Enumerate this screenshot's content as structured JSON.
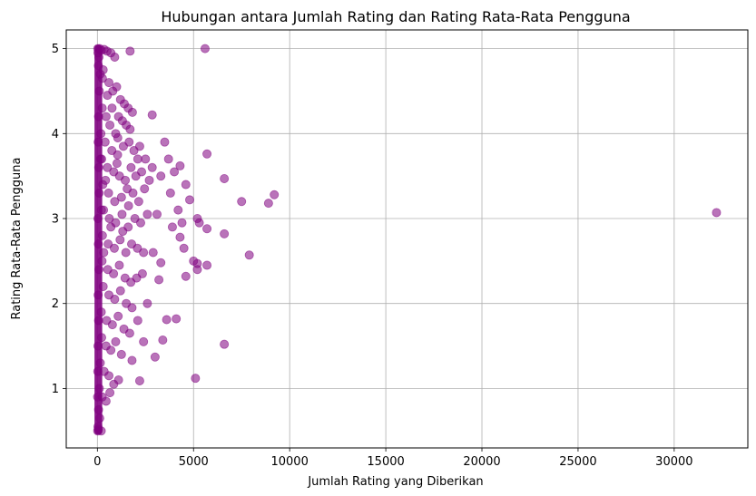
{
  "chart_data": {
    "type": "scatter",
    "title": "Hubungan antara Jumlah Rating dan Rating Rata-Rata Pengguna",
    "xlabel": "Jumlah Rating yang Diberikan",
    "ylabel": "Rating Rata-Rata Pengguna",
    "xlim": [
      -1620,
      33830
    ],
    "ylim": [
      0.3,
      5.22
    ],
    "xticks": [
      0,
      5000,
      10000,
      15000,
      20000,
      25000,
      30000
    ],
    "yticks": [
      1,
      2,
      3,
      4,
      5
    ],
    "grid": true,
    "color": "#800080",
    "alpha": 0.55,
    "series": [
      {
        "dense_cluster": [
          [
            20,
            5.0
          ],
          [
            30,
            4.95
          ],
          [
            80,
            4.9
          ],
          [
            120,
            5.0
          ],
          [
            200,
            4.98
          ],
          [
            350,
            4.99
          ],
          [
            500,
            4.97
          ],
          [
            700,
            4.95
          ],
          [
            900,
            4.9
          ],
          [
            50,
            4.8
          ],
          [
            150,
            4.7
          ],
          [
            300,
            4.75
          ],
          [
            600,
            4.6
          ],
          [
            800,
            4.5
          ],
          [
            1000,
            4.55
          ],
          [
            1200,
            4.4
          ],
          [
            1400,
            4.35
          ],
          [
            100,
            4.5
          ],
          [
            250,
            4.3
          ],
          [
            450,
            4.2
          ],
          [
            650,
            4.1
          ],
          [
            950,
            4.0
          ],
          [
            1100,
            4.2
          ],
          [
            1300,
            4.15
          ],
          [
            1500,
            4.1
          ],
          [
            1700,
            4.05
          ],
          [
            60,
            4.2
          ],
          [
            180,
            4.0
          ],
          [
            400,
            3.9
          ],
          [
            750,
            3.8
          ],
          [
            1050,
            3.75
          ],
          [
            1350,
            3.85
          ],
          [
            1650,
            3.9
          ],
          [
            1900,
            3.8
          ],
          [
            2100,
            3.7
          ],
          [
            40,
            3.9
          ],
          [
            220,
            3.7
          ],
          [
            520,
            3.6
          ],
          [
            850,
            3.55
          ],
          [
            1150,
            3.5
          ],
          [
            1450,
            3.45
          ],
          [
            1750,
            3.6
          ],
          [
            2000,
            3.5
          ],
          [
            2300,
            3.55
          ],
          [
            70,
            3.6
          ],
          [
            280,
            3.4
          ],
          [
            580,
            3.3
          ],
          [
            900,
            3.2
          ],
          [
            1250,
            3.25
          ],
          [
            1550,
            3.35
          ],
          [
            1850,
            3.3
          ],
          [
            2150,
            3.2
          ],
          [
            2450,
            3.35
          ],
          [
            90,
            3.3
          ],
          [
            320,
            3.1
          ],
          [
            620,
            3.0
          ],
          [
            950,
            2.95
          ],
          [
            1280,
            3.05
          ],
          [
            1600,
            2.9
          ],
          [
            1950,
            3.0
          ],
          [
            2250,
            2.95
          ],
          [
            2600,
            3.05
          ],
          [
            30,
            3.0
          ],
          [
            260,
            2.8
          ],
          [
            560,
            2.7
          ],
          [
            880,
            2.65
          ],
          [
            1180,
            2.75
          ],
          [
            1480,
            2.6
          ],
          [
            1780,
            2.7
          ],
          [
            2080,
            2.65
          ],
          [
            2400,
            2.6
          ],
          [
            50,
            2.7
          ],
          [
            240,
            2.5
          ],
          [
            540,
            2.4
          ],
          [
            840,
            2.35
          ],
          [
            1140,
            2.45
          ],
          [
            1440,
            2.3
          ],
          [
            1740,
            2.25
          ],
          [
            2040,
            2.3
          ],
          [
            2340,
            2.35
          ],
          [
            80,
            2.4
          ],
          [
            300,
            2.2
          ],
          [
            600,
            2.1
          ],
          [
            900,
            2.05
          ],
          [
            1200,
            2.15
          ],
          [
            1500,
            2.0
          ],
          [
            1800,
            1.95
          ],
          [
            40,
            2.1
          ],
          [
            200,
            1.9
          ],
          [
            480,
            1.8
          ],
          [
            780,
            1.75
          ],
          [
            1080,
            1.85
          ],
          [
            1380,
            1.7
          ],
          [
            1680,
            1.65
          ],
          [
            60,
            1.8
          ],
          [
            220,
            1.6
          ],
          [
            450,
            1.5
          ],
          [
            700,
            1.45
          ],
          [
            950,
            1.55
          ],
          [
            1250,
            1.4
          ],
          [
            30,
            1.5
          ],
          [
            150,
            1.3
          ],
          [
            350,
            1.2
          ],
          [
            600,
            1.15
          ],
          [
            850,
            1.05
          ],
          [
            1100,
            1.1
          ],
          [
            20,
            1.2
          ],
          [
            100,
            1.0
          ],
          [
            250,
            0.9
          ],
          [
            450,
            0.85
          ],
          [
            650,
            0.95
          ],
          [
            10,
            0.9
          ],
          [
            60,
            0.75
          ],
          [
            120,
            0.65
          ],
          [
            30,
            0.55
          ],
          [
            15,
            0.5
          ],
          [
            50,
            0.52
          ],
          [
            200,
            0.5
          ],
          [
            160,
            3.7
          ],
          [
            210,
            3.1
          ],
          [
            330,
            2.6
          ],
          [
            420,
            3.45
          ],
          [
            700,
            2.9
          ],
          [
            1020,
            3.65
          ],
          [
            1320,
            2.85
          ],
          [
            1620,
            3.15
          ],
          [
            1820,
            4.25
          ],
          [
            260,
            4.65
          ],
          [
            520,
            4.45
          ],
          [
            760,
            4.3
          ],
          [
            1060,
            3.95
          ],
          [
            1600,
            4.3
          ],
          [
            2200,
            3.85
          ],
          [
            2500,
            3.7
          ],
          [
            2700,
            3.45
          ],
          [
            2850,
            3.6
          ]
        ],
        "outliers": [
          [
            1700,
            4.97
          ],
          [
            5600,
            5.0
          ],
          [
            2850,
            4.22
          ],
          [
            5700,
            3.76
          ],
          [
            6600,
            3.47
          ],
          [
            3500,
            3.9
          ],
          [
            4000,
            3.55
          ],
          [
            4300,
            3.62
          ],
          [
            4600,
            3.4
          ],
          [
            4800,
            3.22
          ],
          [
            5200,
            3.0
          ],
          [
            5300,
            2.95
          ],
          [
            5700,
            2.88
          ],
          [
            6600,
            2.82
          ],
          [
            7500,
            3.2
          ],
          [
            8900,
            3.18
          ],
          [
            9200,
            3.28
          ],
          [
            32200,
            3.07
          ],
          [
            4300,
            2.78
          ],
          [
            4500,
            2.65
          ],
          [
            5000,
            2.5
          ],
          [
            5200,
            2.47
          ],
          [
            5700,
            2.45
          ],
          [
            5200,
            2.4
          ],
          [
            7900,
            2.57
          ],
          [
            4600,
            2.32
          ],
          [
            3200,
            2.28
          ],
          [
            3300,
            2.48
          ],
          [
            3600,
            1.81
          ],
          [
            4100,
            1.82
          ],
          [
            3400,
            1.57
          ],
          [
            6600,
            1.52
          ],
          [
            3000,
            1.37
          ],
          [
            5100,
            1.12
          ],
          [
            2200,
            1.09
          ],
          [
            1800,
            1.33
          ],
          [
            3800,
            3.3
          ],
          [
            4200,
            3.1
          ],
          [
            3900,
            2.9
          ],
          [
            3100,
            3.05
          ],
          [
            3300,
            3.5
          ],
          [
            2900,
            2.6
          ],
          [
            4400,
            2.95
          ],
          [
            3700,
            3.7
          ],
          [
            2600,
            2.0
          ],
          [
            2400,
            1.55
          ],
          [
            2100,
            1.8
          ]
        ]
      }
    ]
  }
}
